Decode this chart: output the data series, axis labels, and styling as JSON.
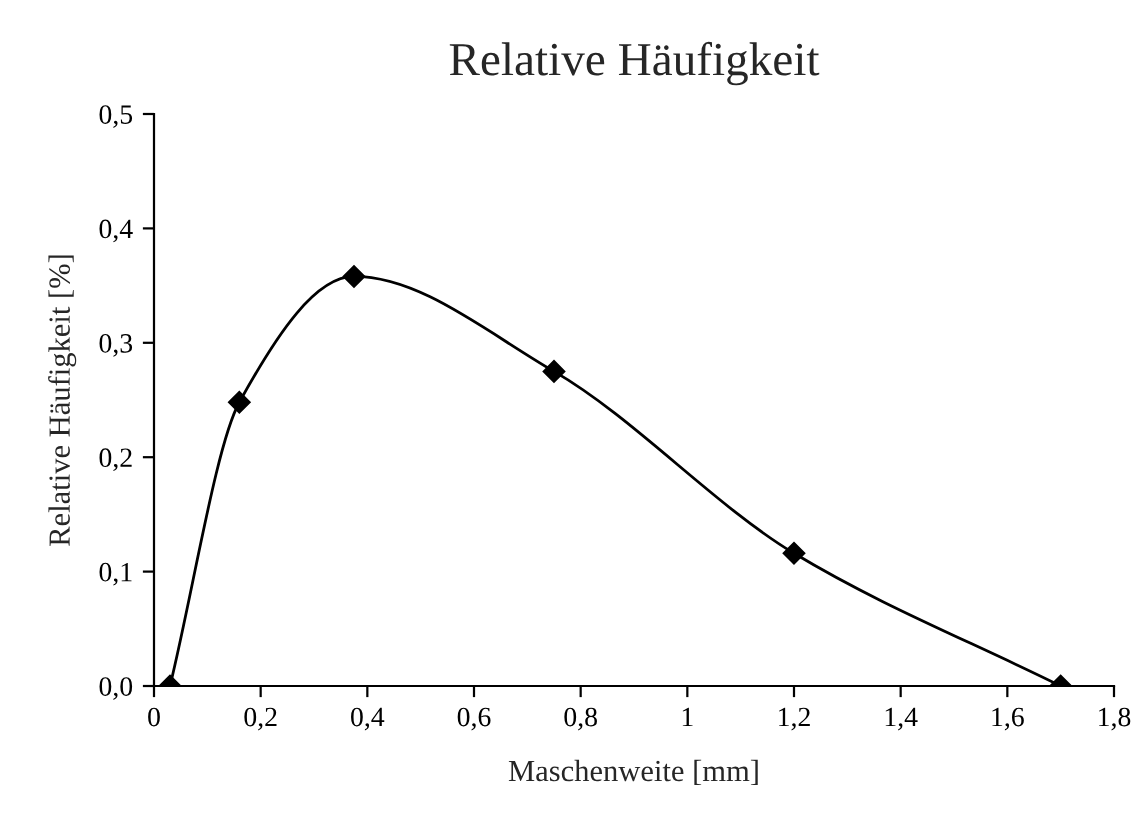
{
  "chart_data": {
    "type": "line",
    "title": "Relative Häufigkeit",
    "xlabel": "Maschenweite [mm]",
    "ylabel": "Relative Häufigkeit [%]",
    "x": [
      0.03,
      0.16,
      0.375,
      0.75,
      1.2,
      1.7
    ],
    "series": [
      {
        "color": "#000000",
        "values": [
          0.0,
          0.248,
          0.358,
          0.275,
          0.116,
          0.0
        ]
      }
    ],
    "xlim": [
      0,
      1.8
    ],
    "xticks": [
      0,
      {
        "value": 0.2,
        "label": "0,2"
      },
      {
        "value": 0.4,
        "label": "0,4"
      },
      {
        "value": 0.6,
        "label": "0,6"
      },
      {
        "value": 0.8,
        "label": "0,8"
      },
      1,
      {
        "value": 1.2,
        "label": "1,2"
      },
      {
        "value": 1.4,
        "label": "1,4"
      },
      {
        "value": 1.6,
        "label": "1,6"
      },
      {
        "value": 1.8,
        "label": "1,8"
      }
    ],
    "ylim": [
      0,
      0.5
    ],
    "yticks": [
      {
        "value": 0,
        "label": "0,0"
      },
      {
        "value": 0.1,
        "label": "0,1"
      },
      {
        "value": 0.2,
        "label": "0,2"
      },
      {
        "value": 0.3,
        "label": "0,3"
      },
      {
        "value": 0.4,
        "label": "0,4"
      },
      {
        "value": 0.5,
        "label": "0,5"
      }
    ],
    "grid": false,
    "legend": false,
    "marker": "diamond",
    "line_style": "solid"
  }
}
